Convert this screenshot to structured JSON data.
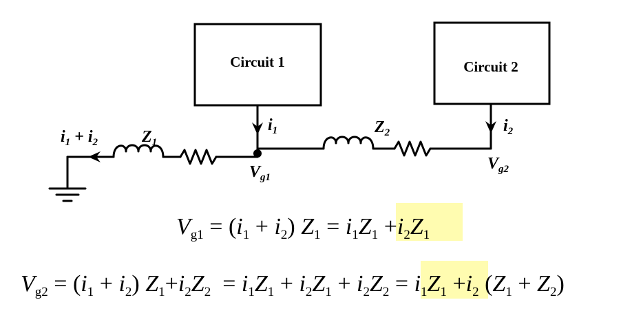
{
  "diagram": {
    "circuit1_label": "Circuit 1",
    "circuit2_label": "Circuit 2",
    "current_in_label": {
      "a": "i",
      "a_sub": "1",
      "op": " + ",
      "b": "i",
      "b_sub": "2"
    },
    "z1_label": {
      "main": "Z",
      "sub": "1"
    },
    "z2_label": {
      "main": "Z",
      "sub": "2"
    },
    "i1_label": {
      "main": "i",
      "sub": "1"
    },
    "i2_label": {
      "main": "i",
      "sub": "2"
    },
    "vg1_label": {
      "main": "V",
      "sub": "g1"
    },
    "vg2_label": {
      "main": "V",
      "sub": "g2"
    }
  },
  "equations": {
    "eq1": {
      "lhs": "V",
      "lhs_sub": "g1",
      "eq": "=",
      "t1": "(",
      "t2": "i",
      "t2s": "1",
      "t3": "+",
      "t4": "i",
      "t4s": "2",
      "t5": ")",
      "t6": "Z",
      "t6s": "1",
      "eq2": "=",
      "t7": "i",
      "t7s": "1",
      "t8": "Z",
      "t8s": "1",
      "plus": "+",
      "h1": "i",
      "h1s": "2",
      "h2": "Z",
      "h2s": "1"
    },
    "eq2": {
      "lhs": "V",
      "lhs_sub": "g2",
      "eq": "=",
      "a1": "(",
      "a2": "i",
      "a2s": "1",
      "a3": "+",
      "a4": "i",
      "a4s": "2",
      "a5": ")",
      "a6": "Z",
      "a6s": "1",
      "a7": "+",
      "a8": "i",
      "a8s": "2",
      "a9": "Z",
      "a9s": "2",
      "eqb": "=",
      "b1": "i",
      "b1s": "1",
      "b2": "Z",
      "b2s": "1",
      "b3": "+",
      "b4": "i",
      "b4s": "2",
      "b5": "Z",
      "b5s": "1",
      "b6": "+",
      "b7": "i",
      "b7s": "2",
      "b8": "Z",
      "b8s": "2",
      "eqc": "=",
      "h1": "i",
      "h1s": "1",
      "h2": "Z",
      "h2s": "1",
      "c1": "+",
      "c2": "i",
      "c2s": "2",
      "c3": "(",
      "c4": "Z",
      "c4s": "1",
      "c5": "+",
      "c6": "Z",
      "c6s": "2",
      "c7": ")"
    }
  },
  "colors": {
    "highlight": "#fffcb0",
    "ink": "#000000"
  }
}
